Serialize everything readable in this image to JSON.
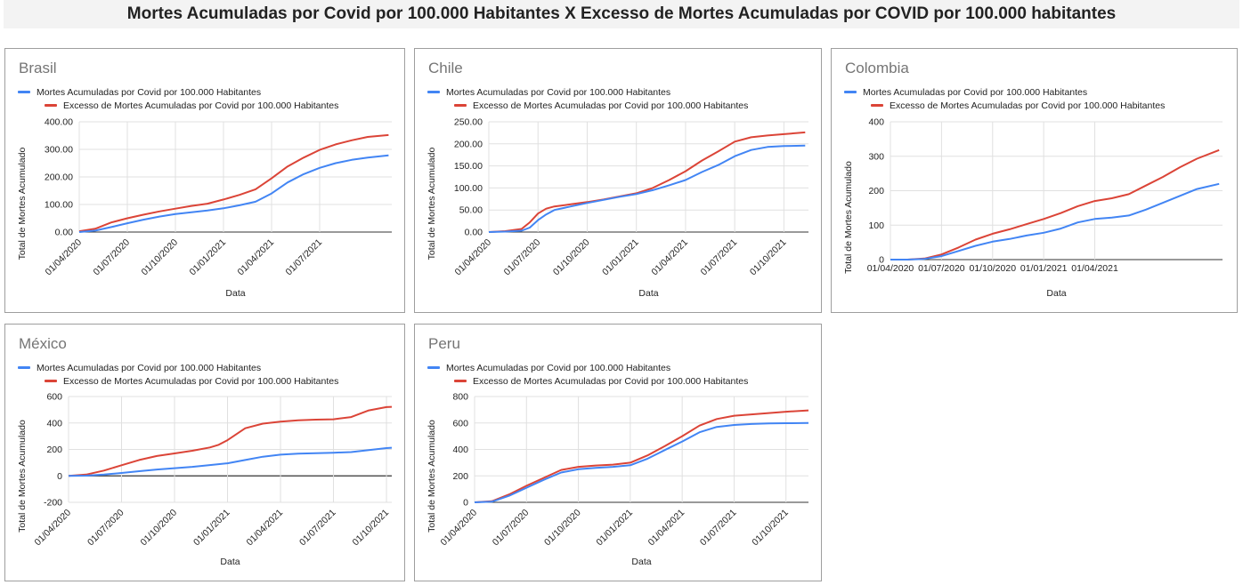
{
  "page": {
    "title": "Mortes Acumuladas por Covid por 100.000 Habitantes X Excesso de Mortes Acumuladas por COVID por 100.000 habitantes"
  },
  "colors": {
    "covid": "#4285f4",
    "excess": "#db4437",
    "grid": "#e0e0e0",
    "zero": "#333333"
  },
  "legend": {
    "covid": "Mortes Acumuladas por Covid por 100.000 Habitantes",
    "excess": "Excesso de Mortes Acumuladas por Covid por 100.000 Habitantes"
  },
  "chart_data": [
    {
      "type": "line",
      "title": "Brasil",
      "xlabel": "Data",
      "ylabel": "Total de Mortes Acumulado",
      "ylim": [
        0,
        400
      ],
      "xlim": [
        0,
        19.5
      ],
      "yticks": [
        0,
        100,
        200,
        300,
        400
      ],
      "ytick_labels": [
        "0.00",
        "100.00",
        "200.00",
        "300.00",
        "400.00"
      ],
      "xticks": [
        0,
        3,
        6,
        9,
        12,
        15
      ],
      "x_tick_rotated": true,
      "xtick_labels": [
        "01/04/2020",
        "01/07/2020",
        "01/10/2020",
        "01/01/2021",
        "01/04/2021",
        "01/07/2021"
      ],
      "legend": "top",
      "grid": true,
      "series": [
        {
          "name": "Mortes Acumuladas por Covid por 100.000 Habitantes",
          "x": [
            0,
            1,
            2,
            3,
            4,
            5,
            6,
            7,
            8,
            9,
            10,
            11,
            12,
            13,
            14,
            15,
            16,
            17,
            18,
            19.3
          ],
          "y": [
            0,
            5,
            18,
            32,
            45,
            56,
            65,
            72,
            78,
            86,
            97,
            110,
            140,
            180,
            210,
            233,
            250,
            262,
            270,
            278
          ]
        },
        {
          "name": "Excesso de Mortes Acumuladas por Covid por 100.000 Habitantes",
          "x": [
            0,
            1,
            2,
            3,
            4,
            5,
            6,
            7,
            8,
            9,
            10,
            11,
            12,
            13,
            14,
            15,
            16,
            17,
            18,
            19.3
          ],
          "y": [
            3,
            12,
            35,
            50,
            63,
            75,
            85,
            95,
            103,
            118,
            135,
            155,
            195,
            238,
            270,
            298,
            318,
            333,
            345,
            352
          ]
        }
      ]
    },
    {
      "type": "line",
      "title": "Chile",
      "xlabel": "Data",
      "ylabel": "Total de Mortes Acumulado",
      "ylim": [
        0,
        250
      ],
      "xlim": [
        0,
        19.5
      ],
      "yticks": [
        0,
        50,
        100,
        150,
        200,
        250
      ],
      "ytick_labels": [
        "0.00",
        "50.00",
        "100.00",
        "150.00",
        "200.00",
        "250.00"
      ],
      "xticks": [
        0,
        3,
        6,
        9,
        12,
        15,
        18
      ],
      "x_tick_rotated": true,
      "xtick_labels": [
        "01/04/2020",
        "01/07/2020",
        "01/10/2020",
        "01/01/2021",
        "01/04/2021",
        "01/07/2021",
        "01/10/2021"
      ],
      "legend": "top",
      "grid": true,
      "series": [
        {
          "name": "Mortes Acumuladas por Covid por 100.000 Habitantes",
          "x": [
            0,
            1,
            2,
            2.5,
            3,
            3.5,
            4,
            5,
            6,
            7,
            8,
            9,
            10,
            11,
            12,
            13,
            14,
            15,
            16,
            17,
            18,
            19.3
          ],
          "y": [
            0,
            1,
            3,
            10,
            27,
            40,
            50,
            58,
            66,
            73,
            80,
            86,
            95,
            106,
            118,
            136,
            152,
            172,
            186,
            193,
            195,
            196
          ]
        },
        {
          "name": "Excesso de Mortes Acumuladas por Covid por 100.000 Habitantes",
          "x": [
            0,
            1,
            2,
            2.5,
            3,
            3.5,
            4,
            5,
            6,
            7,
            8,
            9,
            10,
            11,
            12,
            13,
            14,
            15,
            16,
            17,
            18,
            19.3
          ],
          "y": [
            0,
            2,
            7,
            22,
            42,
            53,
            58,
            63,
            68,
            74,
            81,
            88,
            100,
            118,
            138,
            162,
            183,
            205,
            215,
            219,
            222,
            226
          ]
        }
      ]
    },
    {
      "type": "line",
      "title": "Colombia",
      "xlabel": "Data",
      "ylabel": "Total de Mortes Acumulado",
      "ylim": [
        0,
        400
      ],
      "xlim": [
        0,
        19.5
      ],
      "yticks": [
        0,
        100,
        200,
        300,
        400
      ],
      "ytick_labels": [
        "0",
        "100",
        "200",
        "300",
        "400"
      ],
      "xticks": [
        0,
        3,
        6,
        9,
        12
      ],
      "x_tick_rotated": false,
      "xtick_labels": [
        "01/04/2020",
        "01/07/2020",
        "01/10/2020",
        "01/01/2021",
        "01/04/2021"
      ],
      "legend": "top",
      "grid": true,
      "series": [
        {
          "name": "Mortes Acumuladas por Covid por 100.000 Habitantes",
          "x": [
            0,
            1,
            2,
            3,
            4,
            5,
            6,
            7,
            8,
            9,
            10,
            11,
            12,
            13,
            14,
            15,
            16,
            17,
            18,
            19.3
          ],
          "y": [
            0,
            0,
            2,
            10,
            25,
            40,
            52,
            60,
            70,
            78,
            90,
            108,
            118,
            122,
            128,
            145,
            165,
            185,
            205,
            220
          ]
        },
        {
          "name": "Excesso de Mortes Acumuladas por Covid por 100.000 Habitantes",
          "x": [
            0,
            1,
            2,
            3,
            4,
            5,
            6,
            7,
            8,
            9,
            10,
            11,
            12,
            13,
            14,
            15,
            16,
            17,
            18,
            19.3
          ],
          "y": [
            0,
            0,
            3,
            15,
            35,
            58,
            75,
            88,
            103,
            118,
            135,
            155,
            170,
            178,
            190,
            215,
            240,
            268,
            293,
            318
          ]
        }
      ]
    },
    {
      "type": "line",
      "title": "México",
      "xlabel": "Data",
      "ylabel": "Total de Mortes Acumulado",
      "ylim": [
        -200,
        600
      ],
      "xlim": [
        0,
        18.3
      ],
      "yticks": [
        -200,
        0,
        200,
        400,
        600
      ],
      "ytick_labels": [
        "-200",
        "0",
        "200",
        "400",
        "600"
      ],
      "xticks": [
        0,
        3,
        6,
        9,
        12,
        15,
        18
      ],
      "x_tick_rotated": true,
      "xtick_labels": [
        "01/04/2020",
        "01/07/2020",
        "01/10/2020",
        "01/01/2021",
        "01/04/2021",
        "01/07/2021",
        "01/10/2021"
      ],
      "legend": "top",
      "grid": true,
      "series": [
        {
          "name": "Mortes Acumuladas por Covid por 100.000 Habitantes",
          "x": [
            0,
            1,
            2,
            3,
            4,
            5,
            6,
            7,
            8,
            9,
            10,
            11,
            12,
            13,
            14,
            15,
            16,
            17,
            18,
            18.3
          ],
          "y": [
            0,
            2,
            10,
            22,
            35,
            48,
            58,
            68,
            82,
            95,
            120,
            145,
            160,
            168,
            172,
            175,
            180,
            195,
            210,
            213
          ]
        },
        {
          "name": "Excesso de Mortes Acumuladas por Covid por 100.000 Habitantes",
          "x": [
            0,
            1,
            2,
            3,
            4,
            5,
            6,
            7,
            8,
            8.5,
            9,
            10,
            11,
            12,
            13,
            14,
            15,
            16,
            17,
            18,
            18.3
          ],
          "y": [
            0,
            10,
            40,
            80,
            120,
            150,
            170,
            190,
            215,
            235,
            270,
            360,
            395,
            410,
            420,
            425,
            428,
            445,
            495,
            520,
            522
          ]
        }
      ]
    },
    {
      "type": "line",
      "title": "Peru",
      "xlabel": "Data",
      "ylabel": "Total de Mortes Acumulado",
      "ylim": [
        0,
        800
      ],
      "xlim": [
        0,
        19.3
      ],
      "yticks": [
        0,
        200,
        400,
        600,
        800
      ],
      "ytick_labels": [
        "0",
        "200",
        "400",
        "600",
        "800"
      ],
      "xticks": [
        0,
        3,
        6,
        9,
        12,
        15,
        18
      ],
      "x_tick_rotated": true,
      "xtick_labels": [
        "01/04/2020",
        "01/07/2020",
        "01/10/2020",
        "01/01/2021",
        "01/04/2021",
        "01/07/2021",
        "01/10/2021"
      ],
      "legend": "top",
      "grid": true,
      "series": [
        {
          "name": "Mortes Acumuladas por Covid por 100.000 Habitantes",
          "x": [
            0,
            1,
            2,
            3,
            4,
            5,
            6,
            7,
            8,
            9,
            10,
            11,
            12,
            13,
            14,
            15,
            16,
            17,
            18,
            19.3
          ],
          "y": [
            0,
            5,
            50,
            110,
            170,
            225,
            250,
            260,
            268,
            280,
            330,
            395,
            460,
            530,
            570,
            585,
            592,
            596,
            598,
            600
          ]
        },
        {
          "name": "Excesso de Mortes Acumuladas por Covid por 100.000 Habitantes",
          "x": [
            0,
            1,
            2,
            3,
            4,
            5,
            6,
            7,
            8,
            9,
            10,
            11,
            12,
            13,
            14,
            15,
            16,
            17,
            18,
            19.3
          ],
          "y": [
            0,
            8,
            60,
            125,
            185,
            245,
            268,
            278,
            285,
            300,
            355,
            425,
            500,
            580,
            630,
            655,
            665,
            675,
            685,
            695
          ]
        }
      ]
    }
  ]
}
